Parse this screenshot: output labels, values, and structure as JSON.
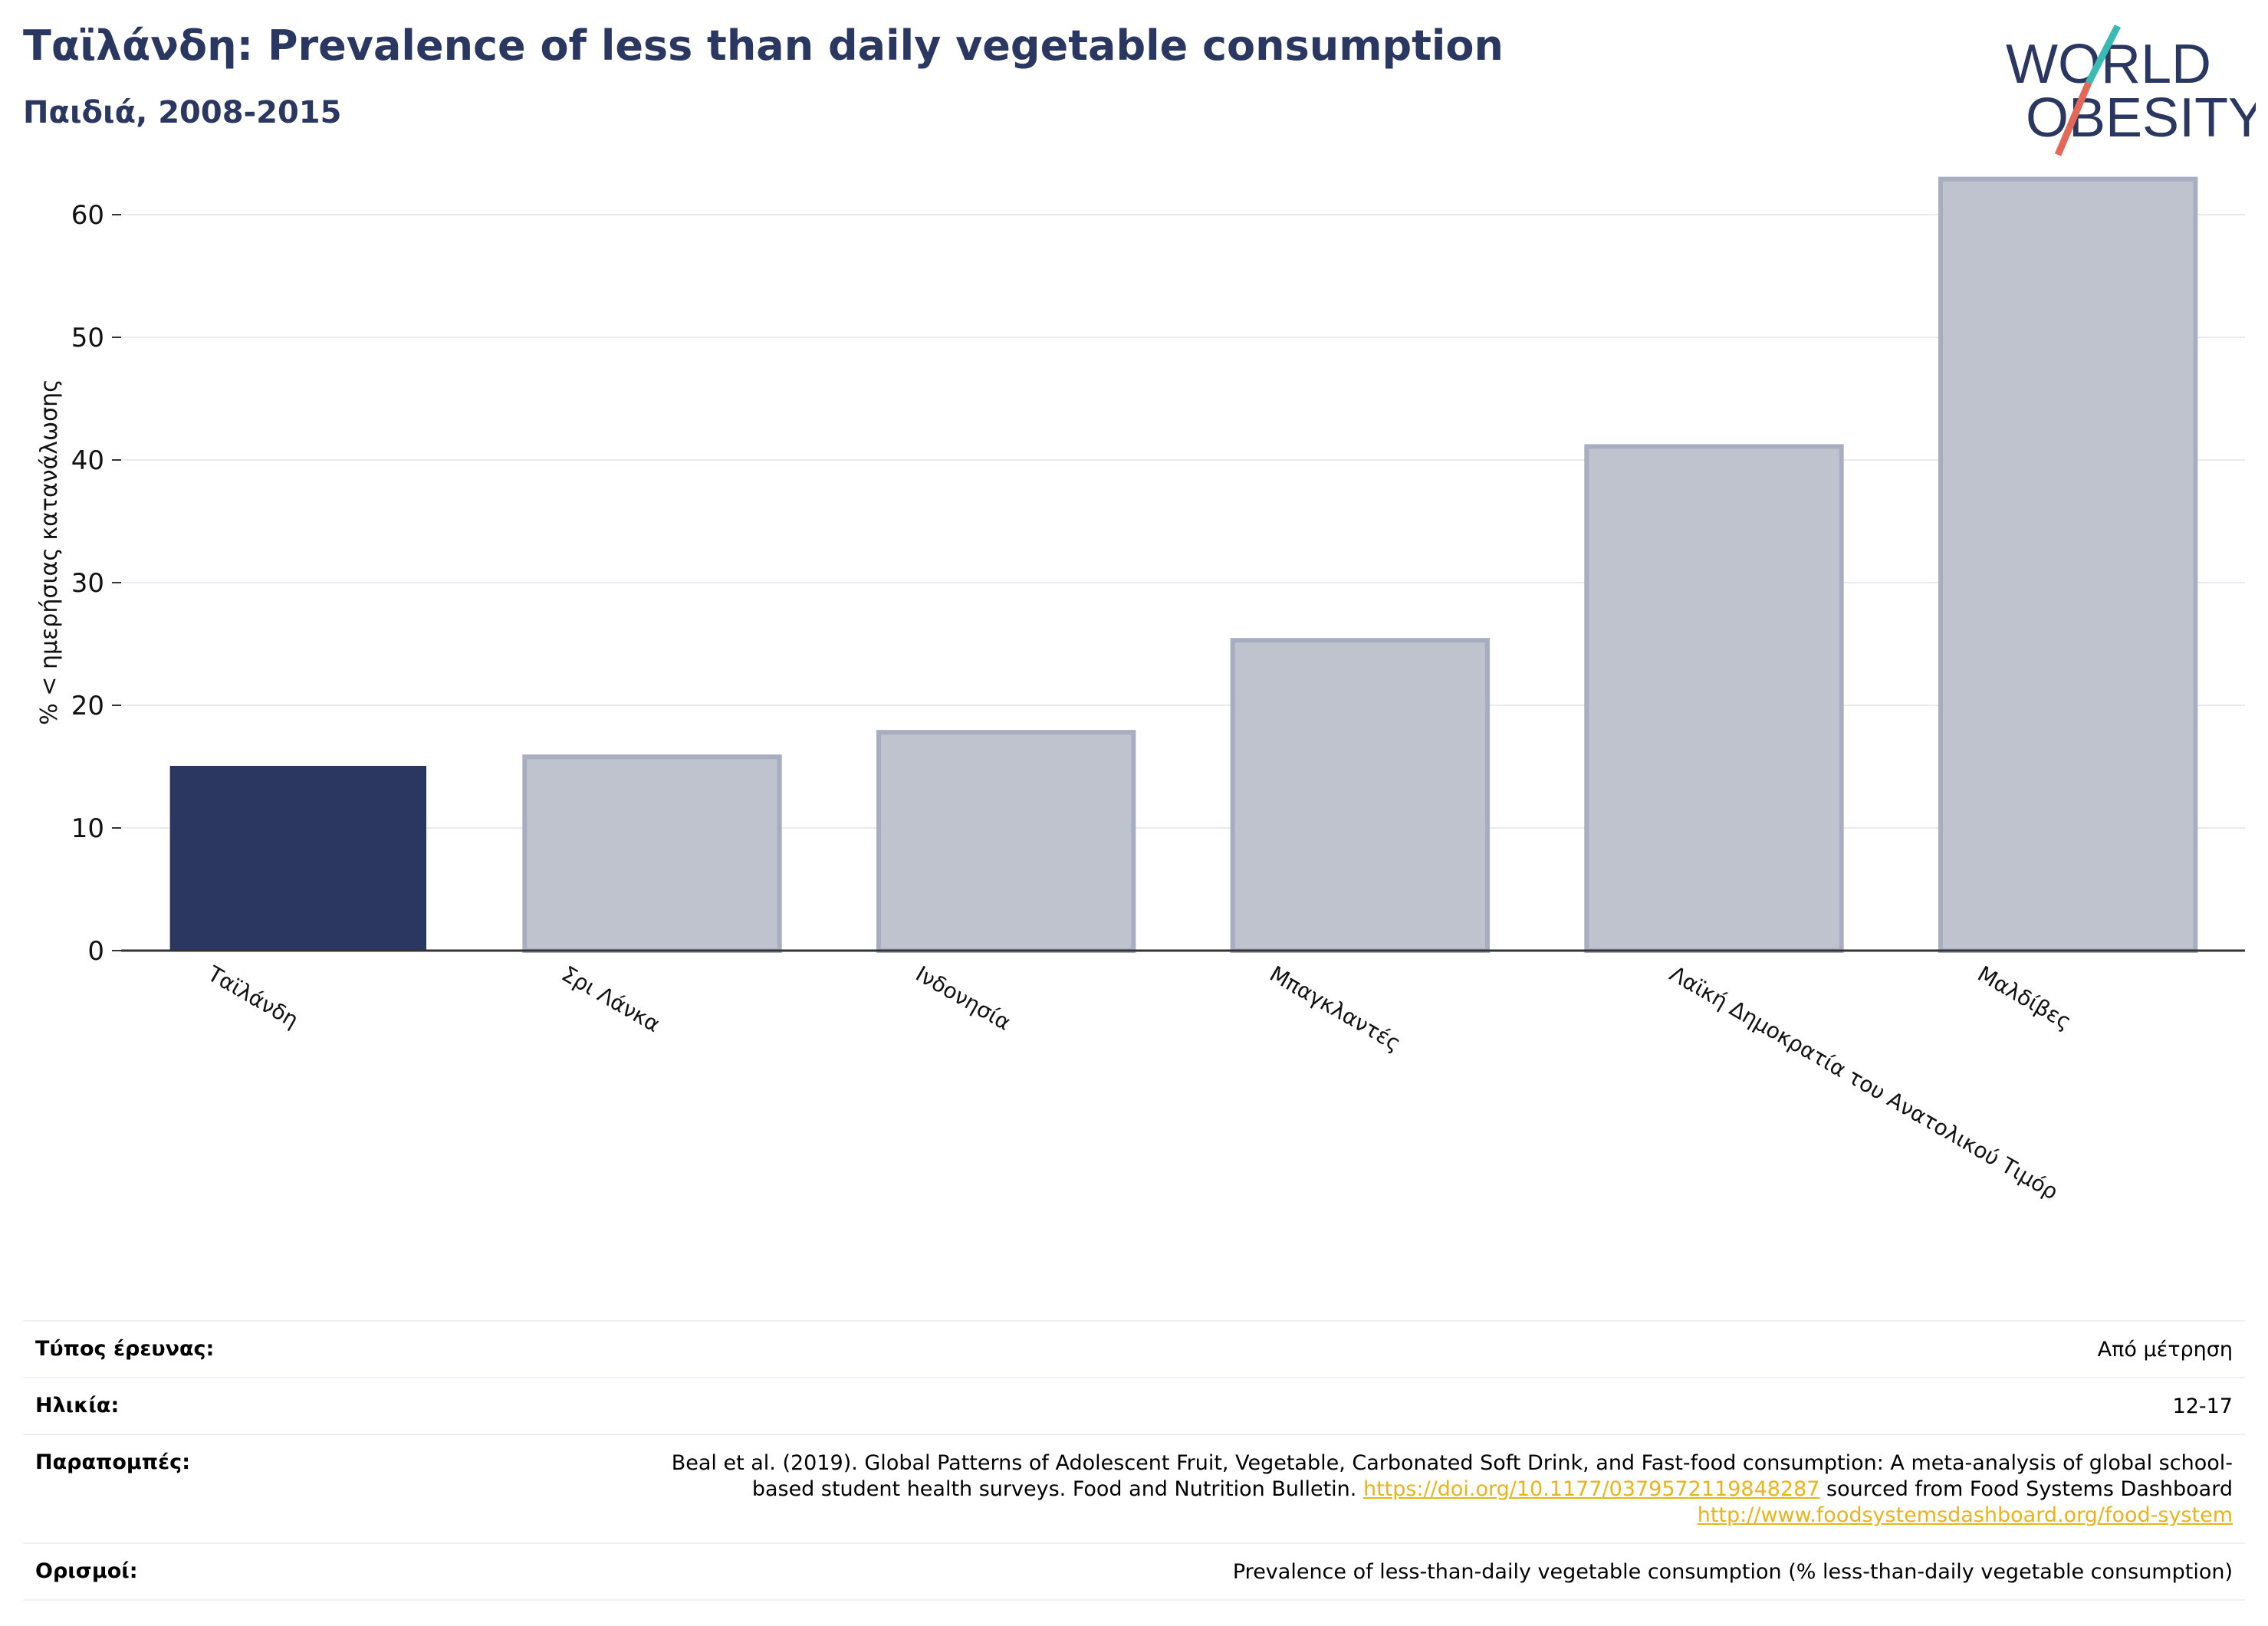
{
  "header": {
    "title": "Ταϊλάνδη: Prevalence of less than daily vegetable consumption",
    "subtitle": "Παιδιά, 2008-2015"
  },
  "logo": {
    "line1": "WORLD",
    "line2": "OBESITY"
  },
  "chart_data": {
    "type": "bar",
    "categories": [
      "Ταϊλάνδη",
      "Σρι Λάνκα",
      "Ινδονησία",
      "Μπαγκλαντές",
      "Λαϊκή Δημοκρατία του Ανατολικού Τιμόρ",
      "Μαλδίβες"
    ],
    "values": [
      15,
      15.8,
      17.8,
      25.3,
      41.1,
      62.9
    ],
    "highlight_index": 0,
    "ylabel": "% < ημερήσιας κατανάλωσης",
    "ylim": [
      0,
      65
    ],
    "yticks": [
      0,
      10,
      20,
      30,
      40,
      50,
      60
    ],
    "grid": true,
    "colors": {
      "highlight": "#2b3761",
      "other": "#bfc3ce",
      "other_edge": "#a8aec0"
    }
  },
  "info": {
    "survey_type": {
      "label": "Τύπος έρευνας:",
      "value": "Από μέτρηση"
    },
    "age": {
      "label": "Ηλικία:",
      "value": "12-17"
    },
    "references": {
      "label": "Παραπομπές:",
      "text1": "Beal et al. (2019). Global Patterns of Adolescent Fruit, Vegetable, Carbonated Soft Drink, and Fast-food consumption: A meta-analysis of global school-based student health surveys. Food and Nutrition Bulletin. ",
      "link1": "https://doi.org/10.1177/0379572119848287",
      "text2": " sourced from Food Systems Dashboard ",
      "link2": "http://www.foodsystemsdashboard.org/food-system"
    },
    "definitions": {
      "label": "Ορισμοί:",
      "value": "Prevalence of less-than-daily vegetable consumption (% less-than-daily vegetable consumption)"
    }
  }
}
